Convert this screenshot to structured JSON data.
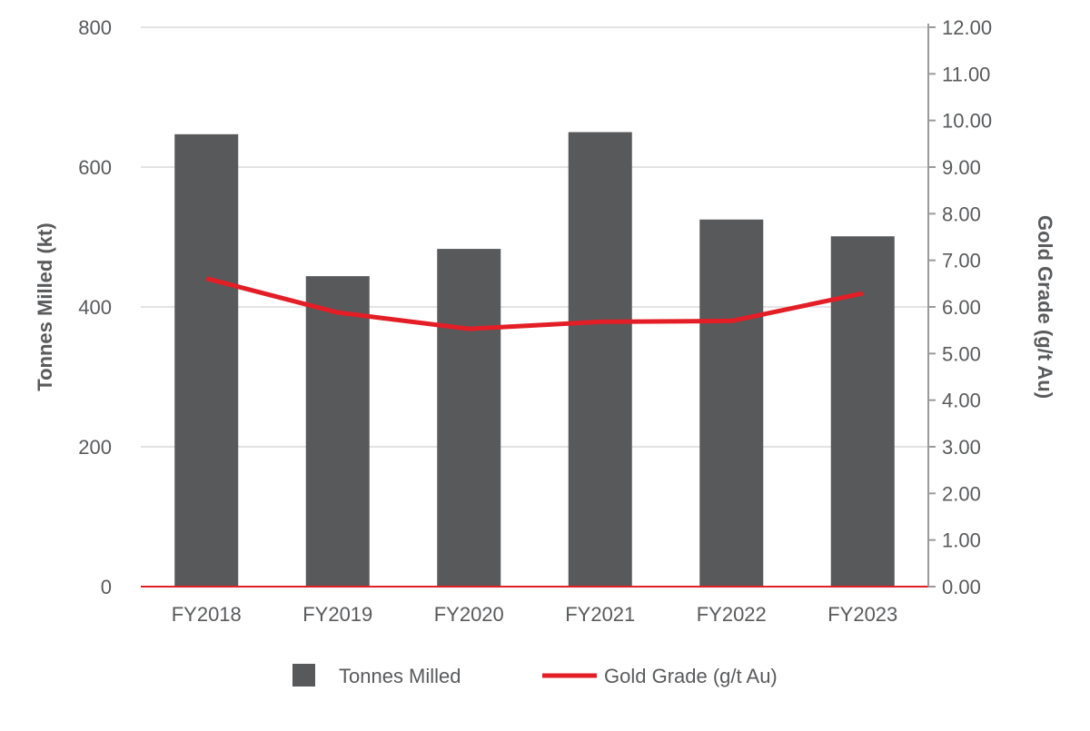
{
  "chart_data": {
    "type": "bar+line",
    "categories": [
      "FY2018",
      "FY2019",
      "FY2020",
      "FY2021",
      "FY2022",
      "FY2023"
    ],
    "series": [
      {
        "name": "Tonnes Milled",
        "type": "bar",
        "axis": "left",
        "color": "#58595b",
        "values": [
          647,
          444,
          483,
          650,
          525,
          501
        ]
      },
      {
        "name": "Gold Grade (g/t Au)",
        "type": "line",
        "axis": "right",
        "color": "#e31e26",
        "values": [
          6.61,
          5.88,
          5.53,
          5.68,
          5.7,
          6.29
        ]
      }
    ],
    "y_left": {
      "label": "Tonnes Milled (kt)",
      "range": [
        0,
        800
      ],
      "ticks": [
        "0",
        "200",
        "400",
        "600",
        "800"
      ]
    },
    "y_right": {
      "label": "Gold Grade (g/t Au)",
      "range": [
        0,
        12
      ],
      "ticks": [
        "0.00",
        "1.00",
        "2.00",
        "3.00",
        "4.00",
        "5.00",
        "6.00",
        "7.00",
        "8.00",
        "9.00",
        "10.00",
        "11.00",
        "12.00"
      ]
    },
    "grid": true,
    "legend_position": "bottom"
  }
}
